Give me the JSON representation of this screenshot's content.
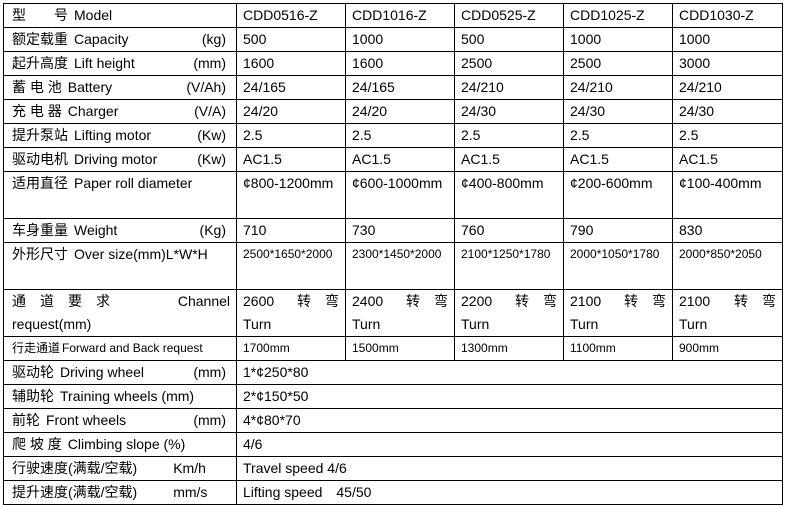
{
  "models": [
    "CDD0516-Z",
    "CDD1016-Z",
    "CDD0525-Z",
    "CDD1025-Z",
    "CDD1030-Z"
  ],
  "rows": [
    {
      "cn": "型　　号",
      "en": "Model",
      "unit": ""
    },
    {
      "cn": "额定载重",
      "en": "Capacity",
      "unit": "(kg)",
      "values": [
        "500",
        "1000",
        "500",
        "1000",
        "1000"
      ]
    },
    {
      "cn": "起升高度",
      "en": "Lift height",
      "unit": "(mm)",
      "values": [
        "1600",
        "1600",
        "2500",
        "2500",
        "3000"
      ]
    },
    {
      "cn": "蓄 电 池",
      "en": "Battery",
      "unit": "(V/Ah)",
      "values": [
        "24/165",
        "24/165",
        "24/210",
        "24/210",
        "24/210"
      ]
    },
    {
      "cn": "充 电 器",
      "en": "Charger",
      "unit": "(V/A)",
      "values": [
        "24/20",
        "24/20",
        "24/30",
        "24/30",
        "24/30"
      ]
    },
    {
      "cn": "提升泵站",
      "en": "Lifting motor",
      "unit": "(Kw)",
      "values": [
        "2.5",
        "2.5",
        "2.5",
        "2.5",
        "2.5"
      ]
    },
    {
      "cn": "驱动电机",
      "en": "Driving motor",
      "unit": "(Kw)",
      "values": [
        "AC1.5",
        "AC1.5",
        "AC1.5",
        "AC1.5",
        "AC1.5"
      ]
    },
    {
      "cn": "适用直径",
      "en": "Paper roll diameter",
      "unit": "",
      "values": [
        "¢800-1200mm",
        "¢600-1000mm",
        "¢400-800mm",
        "¢200-600mm",
        "¢100-400mm"
      ]
    },
    {
      "cn": "车身重量",
      "en": "Weight",
      "unit": "(Kg)",
      "values": [
        "710",
        "730",
        "760",
        "790",
        "830"
      ]
    },
    {
      "cn": "外形尺寸",
      "en": "Over size(mm)L*W*H",
      "unit": "",
      "values": [
        "2500*1650*2000",
        "2300*1450*2000",
        "2100*1250*1780",
        "2000*1050*1780",
        "2000*850*2050"
      ]
    },
    {
      "cn": "通　道　要　求",
      "en": "Channel request(mm)",
      "unit": "",
      "values": [
        "2600",
        "2400",
        "2200",
        "2100",
        "2100"
      ],
      "suffix_cn": "转　弯",
      "suffix_en": "Turn"
    },
    {
      "cn": "行走通道",
      "en": "Forward and Back request",
      "unit": "",
      "values": [
        "1700mm",
        "1500mm",
        "1300mm",
        "1100mm",
        "900mm"
      ]
    },
    {
      "cn": "驱动轮",
      "en": "Driving wheel",
      "unit": "(mm)",
      "value": "1*¢250*80"
    },
    {
      "cn": "辅助轮",
      "en": "Training wheels (mm)",
      "unit": "",
      "value": "2*¢150*50"
    },
    {
      "cn": "前轮",
      "en": "Front wheels",
      "unit": "(mm)",
      "value": "4*¢80*70"
    },
    {
      "cn": "爬 坡 度",
      "en": "Climbing slope (%)",
      "unit": "",
      "value": "4/6"
    },
    {
      "cn": "行驶速度(满载/空载)",
      "en": "Km/h",
      "unit": "",
      "value": "Travel speed 4/6"
    },
    {
      "cn": "提升速度(满载/空载)",
      "en": "mm/s",
      "unit": "",
      "value": "Lifting speed　45/50"
    }
  ]
}
